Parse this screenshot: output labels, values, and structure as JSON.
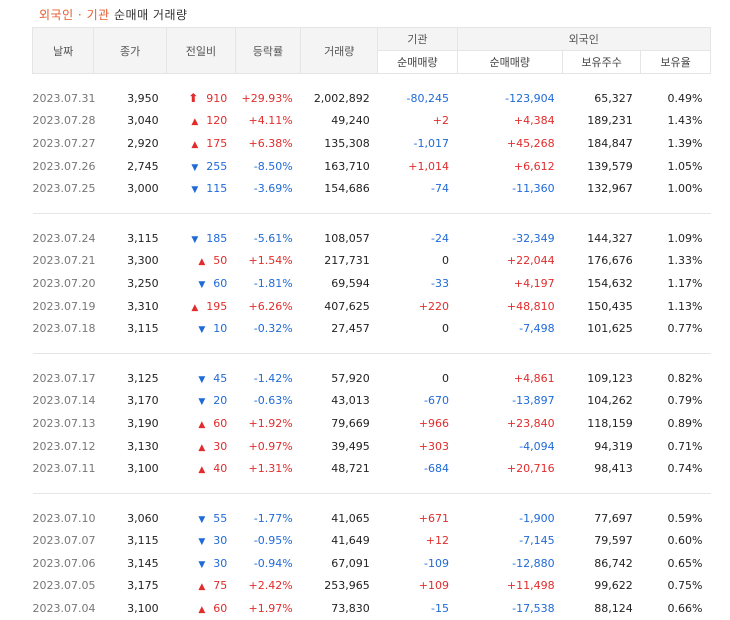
{
  "title": {
    "part1": "외국인 · 기관",
    "part2": "순매매 거래량"
  },
  "headers": {
    "date": "날짜",
    "close": "종가",
    "change": "전일비",
    "rate": "등락률",
    "volume": "거래량",
    "inst": "기관",
    "inst_net": "순매매량",
    "foreign": "외국인",
    "foreign_net": "순매매량",
    "foreign_shares": "보유주수",
    "foreign_ratio": "보유율"
  },
  "colors": {
    "up": "#e22c2c",
    "down": "#1f6ad8",
    "accent": "#e65c2e"
  },
  "groups": [
    [
      {
        "date": "2023.07.31",
        "close": "3,950",
        "dir": "upper",
        "change": "910",
        "rate": "+29.93%",
        "volume": "2,002,892",
        "inst": "-80,245",
        "foreign": "-123,904",
        "shares": "65,327",
        "ratio": "0.49%"
      },
      {
        "date": "2023.07.28",
        "close": "3,040",
        "dir": "up",
        "change": "120",
        "rate": "+4.11%",
        "volume": "49,240",
        "inst": "+2",
        "foreign": "+4,384",
        "shares": "189,231",
        "ratio": "1.43%"
      },
      {
        "date": "2023.07.27",
        "close": "2,920",
        "dir": "up",
        "change": "175",
        "rate": "+6.38%",
        "volume": "135,308",
        "inst": "-1,017",
        "foreign": "+45,268",
        "shares": "184,847",
        "ratio": "1.39%"
      },
      {
        "date": "2023.07.26",
        "close": "2,745",
        "dir": "down",
        "change": "255",
        "rate": "-8.50%",
        "volume": "163,710",
        "inst": "+1,014",
        "foreign": "+6,612",
        "shares": "139,579",
        "ratio": "1.05%"
      },
      {
        "date": "2023.07.25",
        "close": "3,000",
        "dir": "down",
        "change": "115",
        "rate": "-3.69%",
        "volume": "154,686",
        "inst": "-74",
        "foreign": "-11,360",
        "shares": "132,967",
        "ratio": "1.00%"
      }
    ],
    [
      {
        "date": "2023.07.24",
        "close": "3,115",
        "dir": "down",
        "change": "185",
        "rate": "-5.61%",
        "volume": "108,057",
        "inst": "-24",
        "foreign": "-32,349",
        "shares": "144,327",
        "ratio": "1.09%"
      },
      {
        "date": "2023.07.21",
        "close": "3,300",
        "dir": "up",
        "change": "50",
        "rate": "+1.54%",
        "volume": "217,731",
        "inst": "0",
        "foreign": "+22,044",
        "shares": "176,676",
        "ratio": "1.33%"
      },
      {
        "date": "2023.07.20",
        "close": "3,250",
        "dir": "down",
        "change": "60",
        "rate": "-1.81%",
        "volume": "69,594",
        "inst": "-33",
        "foreign": "+4,197",
        "shares": "154,632",
        "ratio": "1.17%"
      },
      {
        "date": "2023.07.19",
        "close": "3,310",
        "dir": "up",
        "change": "195",
        "rate": "+6.26%",
        "volume": "407,625",
        "inst": "+220",
        "foreign": "+48,810",
        "shares": "150,435",
        "ratio": "1.13%"
      },
      {
        "date": "2023.07.18",
        "close": "3,115",
        "dir": "down",
        "change": "10",
        "rate": "-0.32%",
        "volume": "27,457",
        "inst": "0",
        "foreign": "-7,498",
        "shares": "101,625",
        "ratio": "0.77%"
      }
    ],
    [
      {
        "date": "2023.07.17",
        "close": "3,125",
        "dir": "down",
        "change": "45",
        "rate": "-1.42%",
        "volume": "57,920",
        "inst": "0",
        "foreign": "+4,861",
        "shares": "109,123",
        "ratio": "0.82%"
      },
      {
        "date": "2023.07.14",
        "close": "3,170",
        "dir": "down",
        "change": "20",
        "rate": "-0.63%",
        "volume": "43,013",
        "inst": "-670",
        "foreign": "-13,897",
        "shares": "104,262",
        "ratio": "0.79%"
      },
      {
        "date": "2023.07.13",
        "close": "3,190",
        "dir": "up",
        "change": "60",
        "rate": "+1.92%",
        "volume": "79,669",
        "inst": "+966",
        "foreign": "+23,840",
        "shares": "118,159",
        "ratio": "0.89%"
      },
      {
        "date": "2023.07.12",
        "close": "3,130",
        "dir": "up",
        "change": "30",
        "rate": "+0.97%",
        "volume": "39,495",
        "inst": "+303",
        "foreign": "-4,094",
        "shares": "94,319",
        "ratio": "0.71%"
      },
      {
        "date": "2023.07.11",
        "close": "3,100",
        "dir": "up",
        "change": "40",
        "rate": "+1.31%",
        "volume": "48,721",
        "inst": "-684",
        "foreign": "+20,716",
        "shares": "98,413",
        "ratio": "0.74%"
      }
    ],
    [
      {
        "date": "2023.07.10",
        "close": "3,060",
        "dir": "down",
        "change": "55",
        "rate": "-1.77%",
        "volume": "41,065",
        "inst": "+671",
        "foreign": "-1,900",
        "shares": "77,697",
        "ratio": "0.59%"
      },
      {
        "date": "2023.07.07",
        "close": "3,115",
        "dir": "down",
        "change": "30",
        "rate": "-0.95%",
        "volume": "41,649",
        "inst": "+12",
        "foreign": "-7,145",
        "shares": "79,597",
        "ratio": "0.60%"
      },
      {
        "date": "2023.07.06",
        "close": "3,145",
        "dir": "down",
        "change": "30",
        "rate": "-0.94%",
        "volume": "67,091",
        "inst": "-109",
        "foreign": "-12,880",
        "shares": "86,742",
        "ratio": "0.65%"
      },
      {
        "date": "2023.07.05",
        "close": "3,175",
        "dir": "up",
        "change": "75",
        "rate": "+2.42%",
        "volume": "253,965",
        "inst": "+109",
        "foreign": "+11,498",
        "shares": "99,622",
        "ratio": "0.75%"
      },
      {
        "date": "2023.07.04",
        "close": "3,100",
        "dir": "up",
        "change": "60",
        "rate": "+1.97%",
        "volume": "73,830",
        "inst": "-15",
        "foreign": "-17,538",
        "shares": "88,124",
        "ratio": "0.66%"
      }
    ]
  ]
}
